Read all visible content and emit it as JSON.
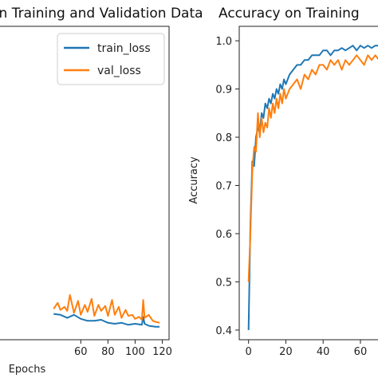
{
  "chart_data": [
    {
      "type": "line",
      "title": "Loss on Training and Validation Data",
      "xlabel": "Epochs",
      "ylabel": "",
      "xlim": [
        -3,
        125
      ],
      "ylim": [
        0.05,
        3.2
      ],
      "x_ticks": [
        60,
        80,
        100,
        120
      ],
      "legend": {
        "position": "top-right"
      },
      "series": [
        {
          "name": "train_loss",
          "color": "#1f77b4",
          "x": [
            40,
            45,
            50,
            55,
            60,
            65,
            70,
            75,
            80,
            85,
            90,
            95,
            100,
            105,
            106,
            107,
            110,
            115,
            118
          ],
          "y": [
            0.31,
            0.3,
            0.27,
            0.3,
            0.26,
            0.24,
            0.24,
            0.25,
            0.22,
            0.21,
            0.22,
            0.2,
            0.21,
            0.2,
            0.28,
            0.21,
            0.19,
            0.18,
            0.18
          ]
        },
        {
          "name": "val_loss",
          "color": "#ff7f0e",
          "x": [
            40,
            43,
            45,
            48,
            50,
            52,
            55,
            58,
            60,
            63,
            65,
            68,
            70,
            73,
            75,
            78,
            80,
            83,
            85,
            88,
            90,
            93,
            95,
            98,
            100,
            103,
            105,
            106,
            107,
            110,
            113,
            115,
            118
          ],
          "y": [
            0.36,
            0.42,
            0.35,
            0.38,
            0.34,
            0.5,
            0.32,
            0.44,
            0.3,
            0.4,
            0.33,
            0.46,
            0.29,
            0.4,
            0.34,
            0.39,
            0.29,
            0.45,
            0.3,
            0.38,
            0.27,
            0.35,
            0.29,
            0.3,
            0.26,
            0.28,
            0.25,
            0.45,
            0.27,
            0.3,
            0.24,
            0.23,
            0.22
          ]
        }
      ]
    },
    {
      "type": "line",
      "title": "Accuracy  on Training",
      "xlabel": "",
      "ylabel": "Accuracy",
      "xlim": [
        -5,
        72
      ],
      "ylim": [
        0.38,
        1.03
      ],
      "x_ticks": [
        0,
        20,
        40,
        60
      ],
      "y_ticks": [
        0.4,
        0.5,
        0.6,
        0.7,
        0.8,
        0.9,
        1.0
      ],
      "series": [
        {
          "name": "",
          "color": "#1f77b4",
          "x": [
            0,
            1,
            2,
            3,
            4,
            5,
            6,
            7,
            8,
            9,
            10,
            11,
            12,
            13,
            14,
            15,
            16,
            17,
            18,
            19,
            20,
            22,
            24,
            26,
            28,
            30,
            32,
            34,
            36,
            38,
            40,
            42,
            44,
            46,
            48,
            50,
            52,
            54,
            56,
            58,
            60,
            62,
            64,
            66,
            68,
            70,
            72
          ],
          "y": [
            0.4,
            0.62,
            0.75,
            0.74,
            0.8,
            0.82,
            0.81,
            0.85,
            0.84,
            0.87,
            0.86,
            0.88,
            0.87,
            0.89,
            0.88,
            0.9,
            0.89,
            0.91,
            0.9,
            0.92,
            0.91,
            0.93,
            0.94,
            0.95,
            0.95,
            0.96,
            0.96,
            0.97,
            0.97,
            0.97,
            0.98,
            0.98,
            0.97,
            0.98,
            0.98,
            0.985,
            0.98,
            0.985,
            0.99,
            0.98,
            0.99,
            0.985,
            0.99,
            0.985,
            0.99,
            0.99,
            0.995
          ]
        },
        {
          "name": "",
          "color": "#ff7f0e",
          "x": [
            0,
            1,
            2,
            3,
            4,
            5,
            6,
            7,
            8,
            9,
            10,
            11,
            12,
            13,
            14,
            15,
            16,
            17,
            18,
            19,
            20,
            22,
            24,
            26,
            28,
            30,
            32,
            34,
            36,
            38,
            40,
            42,
            44,
            46,
            48,
            50,
            52,
            54,
            56,
            58,
            60,
            62,
            64,
            66,
            68,
            70,
            72
          ],
          "y": [
            0.5,
            0.6,
            0.73,
            0.78,
            0.77,
            0.85,
            0.8,
            0.84,
            0.81,
            0.83,
            0.82,
            0.86,
            0.84,
            0.87,
            0.85,
            0.88,
            0.86,
            0.89,
            0.87,
            0.9,
            0.88,
            0.9,
            0.91,
            0.92,
            0.9,
            0.93,
            0.92,
            0.94,
            0.93,
            0.95,
            0.95,
            0.94,
            0.96,
            0.95,
            0.96,
            0.94,
            0.96,
            0.95,
            0.96,
            0.97,
            0.96,
            0.95,
            0.97,
            0.96,
            0.97,
            0.96,
            0.97
          ]
        }
      ]
    }
  ]
}
